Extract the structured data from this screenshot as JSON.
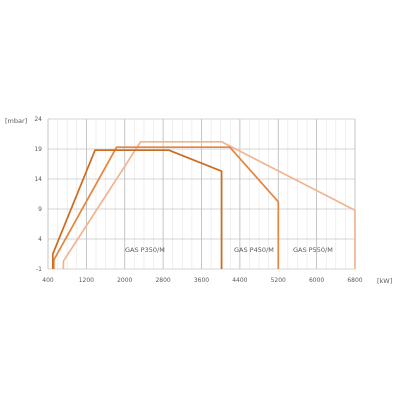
{
  "chart_data": {
    "type": "line",
    "xlabel": "[kW]",
    "ylabel": "[mbar]",
    "xlim": [
      400,
      6800
    ],
    "ylim": [
      -1,
      24
    ],
    "xticks": [
      400,
      1200,
      2000,
      2800,
      3600,
      4400,
      5200,
      6000,
      6800
    ],
    "yticks": [
      -1,
      4,
      9,
      14,
      19,
      24
    ],
    "grid": true,
    "series": [
      {
        "name": "GAS P350/M",
        "color": "#cd6b1f",
        "points": [
          [
            500,
            -1
          ],
          [
            500,
            1.5
          ],
          [
            1380,
            18.8
          ],
          [
            2920,
            18.8
          ],
          [
            4020,
            15.3
          ],
          [
            4020,
            -1
          ]
        ]
      },
      {
        "name": "GAS P450/M",
        "color": "#e3853e",
        "points": [
          [
            520,
            -1
          ],
          [
            520,
            0.5
          ],
          [
            1830,
            19.3
          ],
          [
            4190,
            19.3
          ],
          [
            5200,
            10.2
          ],
          [
            5200,
            -1
          ]
        ]
      },
      {
        "name": "GAS P550/M",
        "color": "#f2b48f",
        "points": [
          [
            720,
            -1
          ],
          [
            720,
            0.3
          ],
          [
            2330,
            20.2
          ],
          [
            4020,
            20.2
          ],
          [
            6800,
            8.8
          ],
          [
            6800,
            -1
          ]
        ]
      }
    ]
  }
}
